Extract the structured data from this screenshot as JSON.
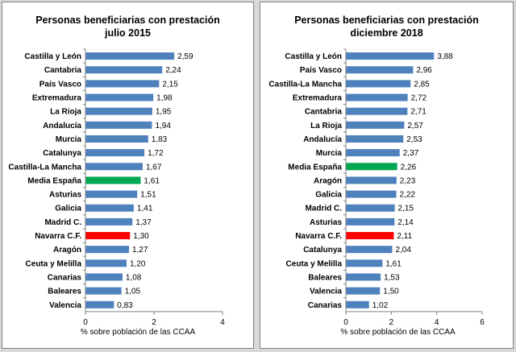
{
  "chart_data": [
    {
      "type": "bar",
      "orientation": "horizontal",
      "title": [
        "Personas beneficiarias  con prestación",
        "julio  2015"
      ],
      "xlabel": "% sobre población de las CCAA",
      "xlim": [
        0,
        4
      ],
      "xticks": [
        "0",
        "2",
        "4"
      ],
      "grid": false,
      "categories": [
        "Castilla y León",
        "Cantabria",
        "País Vasco",
        "Extremadura",
        "La Rioja",
        "Andalucía",
        "Murcia",
        "Catalunya",
        "Castilla-La Mancha",
        "Media España",
        "Asturias",
        "Galicia",
        "Madrid  C.",
        "Navarra C.F.",
        "Aragón",
        "Ceuta y Melilla",
        "Canarias",
        "Baleares",
        "Valencia"
      ],
      "values": [
        2.59,
        2.24,
        2.15,
        1.98,
        1.95,
        1.94,
        1.83,
        1.72,
        1.67,
        1.61,
        1.51,
        1.41,
        1.37,
        1.3,
        1.27,
        1.2,
        1.08,
        1.05,
        0.83
      ],
      "value_labels": [
        "2,59",
        "2,24",
        "2,15",
        "1,98",
        "1,95",
        "1,94",
        "1,83",
        "1,72",
        "1,67",
        "1,61",
        "1,51",
        "1,41",
        "1,37",
        "1,30",
        "1,27",
        "1,20",
        "1,08",
        "1,05",
        "0,83"
      ],
      "highlights": {
        "Media España": "#00a651",
        "Navarra C.F.": "#ff0000"
      }
    },
    {
      "type": "bar",
      "orientation": "horizontal",
      "title": [
        "Personas beneficiarias  con prestación",
        "diciembre 2018"
      ],
      "xlabel": "% sobre población de las CCAA",
      "xlim": [
        0,
        6
      ],
      "xticks": [
        "0",
        "2",
        "4",
        "6"
      ],
      "grid": false,
      "categories": [
        "Castilla y León",
        "País Vasco",
        "Castilla-La Mancha",
        "Extremadura",
        "Cantabria",
        "La Rioja",
        "Andalucía",
        "Murcia",
        "Media España",
        "Aragón",
        "Galicia",
        "Madrid  C.",
        "Asturias",
        "Navarra C.F.",
        "Catalunya",
        "Ceuta y Melilla",
        "Baleares",
        "Valencia",
        "Canarias"
      ],
      "values": [
        3.88,
        2.96,
        2.85,
        2.72,
        2.71,
        2.57,
        2.53,
        2.37,
        2.26,
        2.23,
        2.22,
        2.15,
        2.14,
        2.11,
        2.04,
        1.61,
        1.53,
        1.5,
        1.02
      ],
      "value_labels": [
        "3,88",
        "2,96",
        "2,85",
        "2,72",
        "2,71",
        "2,57",
        "2,53",
        "2,37",
        "2,26",
        "2,23",
        "2,22",
        "2,15",
        "2,14",
        "2,11",
        "2,04",
        "1,61",
        "1,53",
        "1,50",
        "1,02"
      ],
      "highlights": {
        "Media España": "#00a651",
        "Navarra C.F.": "#ff0000"
      }
    }
  ],
  "colors": {
    "bar": "#4f81bd",
    "axis": "#808080"
  }
}
